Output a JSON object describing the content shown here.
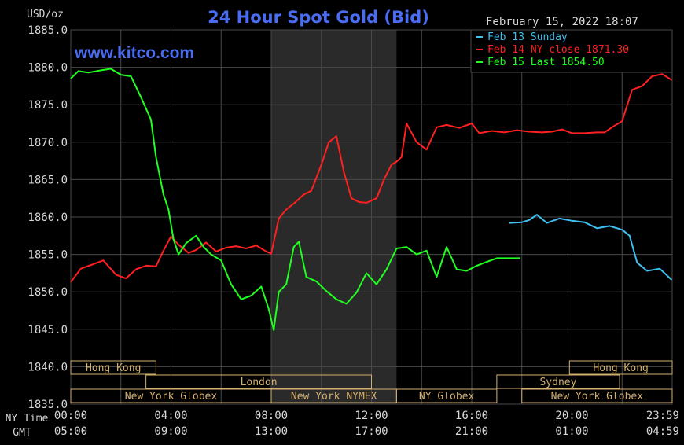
{
  "header": {
    "unit": "USD/oz",
    "title": "24 Hour Spot Gold (Bid)",
    "timestamp": "February 15, 2022 18:07",
    "watermark": "www.kitco.com"
  },
  "colors": {
    "background": "#000000",
    "grid": "#4a4a4a",
    "shade": "#2a2a2a",
    "title": "#4a6cf0",
    "watermark": "#4a6cf0",
    "text": "#d8d8d8",
    "cyan": "#3ec1f0",
    "red": "#ff2020",
    "green": "#20ff20",
    "session": "#d4b070"
  },
  "legend": [
    {
      "name": "Feb 13 Sunday",
      "color": "#3ec1f0"
    },
    {
      "name": "Feb 14 NY close 1871.30",
      "color": "#ff2020"
    },
    {
      "name": "Feb 15 Last 1854.50",
      "color": "#20ff20"
    }
  ],
  "time_labels": {
    "ny_label": "NY Time",
    "gmt_label": "GMT",
    "ny": [
      "00:00",
      "04:00",
      "08:00",
      "12:00",
      "16:00",
      "20:00",
      "23:59"
    ],
    "gmt": [
      "05:00",
      "09:00",
      "13:00",
      "17:00",
      "21:00",
      "01:00",
      "04:59"
    ]
  },
  "sessions": [
    {
      "label": "Hong Kong",
      "start": 0,
      "end": 3.4,
      "row": 0
    },
    {
      "label": "Hong Kong",
      "start": 19.9,
      "end": 24,
      "row": 0
    },
    {
      "label": "London",
      "start": 3.0,
      "end": 12.0,
      "row": 1
    },
    {
      "label": "Sydney",
      "start": 17.0,
      "end": 21.9,
      "row": 1
    },
    {
      "label": "New York Globex",
      "start": 0,
      "end": 8.0,
      "row": 2
    },
    {
      "label": "New York NYMEX",
      "start": 8.0,
      "end": 13.0,
      "row": 2
    },
    {
      "label": "NY Globex",
      "start": 13.0,
      "end": 17.0,
      "row": 2
    },
    {
      "label": "New York Globex",
      "start": 18.0,
      "end": 24,
      "row": 2
    }
  ],
  "chart_data": {
    "type": "line",
    "title": "24 Hour Spot Gold (Bid)",
    "ylabel": "USD/oz",
    "xlabel": "NY Time / GMT",
    "ylim": [
      1835,
      1885
    ],
    "xlim": [
      0,
      24
    ],
    "yticks": [
      "1885.0",
      "1880.0",
      "1875.0",
      "1870.0",
      "1865.0",
      "1860.0",
      "1855.0",
      "1850.0",
      "1845.0",
      "1840.0",
      "1835.0"
    ],
    "shaded_region": [
      8.0,
      13.0
    ],
    "grid": true,
    "legend_position": "top-right",
    "series": [
      {
        "name": "Feb 13 Sunday",
        "color": "#3ec1f0",
        "x": [
          17.5,
          18.0,
          18.3,
          18.6,
          19.0,
          19.5,
          20.0,
          20.5,
          21.0,
          21.5,
          22.0,
          22.3,
          22.6,
          23.0,
          23.5,
          23.98
        ],
        "y": [
          1859.2,
          1859.3,
          1859.6,
          1860.3,
          1859.2,
          1859.8,
          1859.5,
          1859.3,
          1858.5,
          1858.8,
          1858.3,
          1857.5,
          1853.9,
          1852.8,
          1853.1,
          1851.6
        ]
      },
      {
        "name": "Feb 14 NY close 1871.30",
        "color": "#ff2020",
        "x": [
          0,
          0.4,
          0.9,
          1.3,
          1.8,
          2.2,
          2.6,
          3.0,
          3.4,
          3.7,
          4.0,
          4.3,
          4.7,
          5.0,
          5.4,
          5.8,
          6.2,
          6.6,
          7.0,
          7.4,
          7.8,
          8.0,
          8.3,
          8.6,
          8.9,
          9.3,
          9.6,
          10.0,
          10.3,
          10.6,
          10.9,
          11.2,
          11.5,
          11.8,
          12.2,
          12.5,
          12.8,
          13.0,
          13.2,
          13.4,
          13.8,
          14.2,
          14.6,
          15.0,
          15.5,
          16.0,
          16.3,
          16.8,
          17.3,
          17.8,
          18.3,
          18.8,
          19.2,
          19.6,
          20.0,
          20.5,
          21.0,
          21.3,
          21.6,
          22.0,
          22.4,
          22.8,
          23.2,
          23.6,
          23.98
        ],
        "y": [
          1851.3,
          1853.1,
          1853.7,
          1854.2,
          1852.3,
          1851.8,
          1853.0,
          1853.5,
          1853.4,
          1855.5,
          1857.4,
          1856.3,
          1855.2,
          1855.6,
          1856.6,
          1855.4,
          1855.9,
          1856.1,
          1855.8,
          1856.2,
          1855.4,
          1855.1,
          1859.8,
          1861.0,
          1861.8,
          1863.0,
          1863.5,
          1867.0,
          1870.0,
          1870.8,
          1866.0,
          1862.5,
          1862.0,
          1861.9,
          1862.5,
          1865.0,
          1867.0,
          1867.4,
          1868.0,
          1872.5,
          1870.0,
          1869.0,
          1872.0,
          1872.3,
          1871.9,
          1872.5,
          1871.2,
          1871.5,
          1871.3,
          1871.6,
          1871.4,
          1871.3,
          1871.4,
          1871.7,
          1871.2,
          1871.2,
          1871.3,
          1871.3,
          1872.0,
          1872.8,
          1877.0,
          1877.5,
          1878.8,
          1879.1,
          1878.3
        ]
      },
      {
        "name": "Feb 15 Last 1854.50",
        "color": "#20ff20",
        "x": [
          0,
          0.3,
          0.7,
          1.2,
          1.6,
          2.0,
          2.4,
          2.8,
          3.2,
          3.4,
          3.7,
          3.9,
          4.1,
          4.3,
          4.6,
          5.0,
          5.3,
          5.6,
          6.0,
          6.4,
          6.8,
          7.2,
          7.6,
          7.9,
          8.1,
          8.3,
          8.6,
          8.9,
          9.1,
          9.4,
          9.8,
          10.2,
          10.6,
          11.0,
          11.4,
          11.8,
          12.2,
          12.6,
          13.0,
          13.4,
          13.8,
          14.2,
          14.6,
          15.0,
          15.4,
          15.8,
          16.2,
          16.6,
          17.0,
          17.5,
          17.93
        ],
        "y": [
          1878.5,
          1879.5,
          1879.3,
          1879.6,
          1879.8,
          1879.0,
          1878.8,
          1876.0,
          1873.0,
          1868.0,
          1863.0,
          1861.0,
          1857.0,
          1855.0,
          1856.5,
          1857.5,
          1856.0,
          1855.0,
          1854.2,
          1851.0,
          1849.0,
          1849.5,
          1850.7,
          1847.7,
          1844.9,
          1850.0,
          1851.0,
          1856.0,
          1856.7,
          1852.0,
          1851.4,
          1850.1,
          1849.0,
          1848.4,
          1849.9,
          1852.5,
          1851.0,
          1853.0,
          1855.8,
          1856.0,
          1855.0,
          1855.5,
          1852.0,
          1856.0,
          1853.0,
          1852.8,
          1853.5,
          1854.0,
          1854.5,
          1854.5,
          1854.5
        ]
      }
    ]
  }
}
